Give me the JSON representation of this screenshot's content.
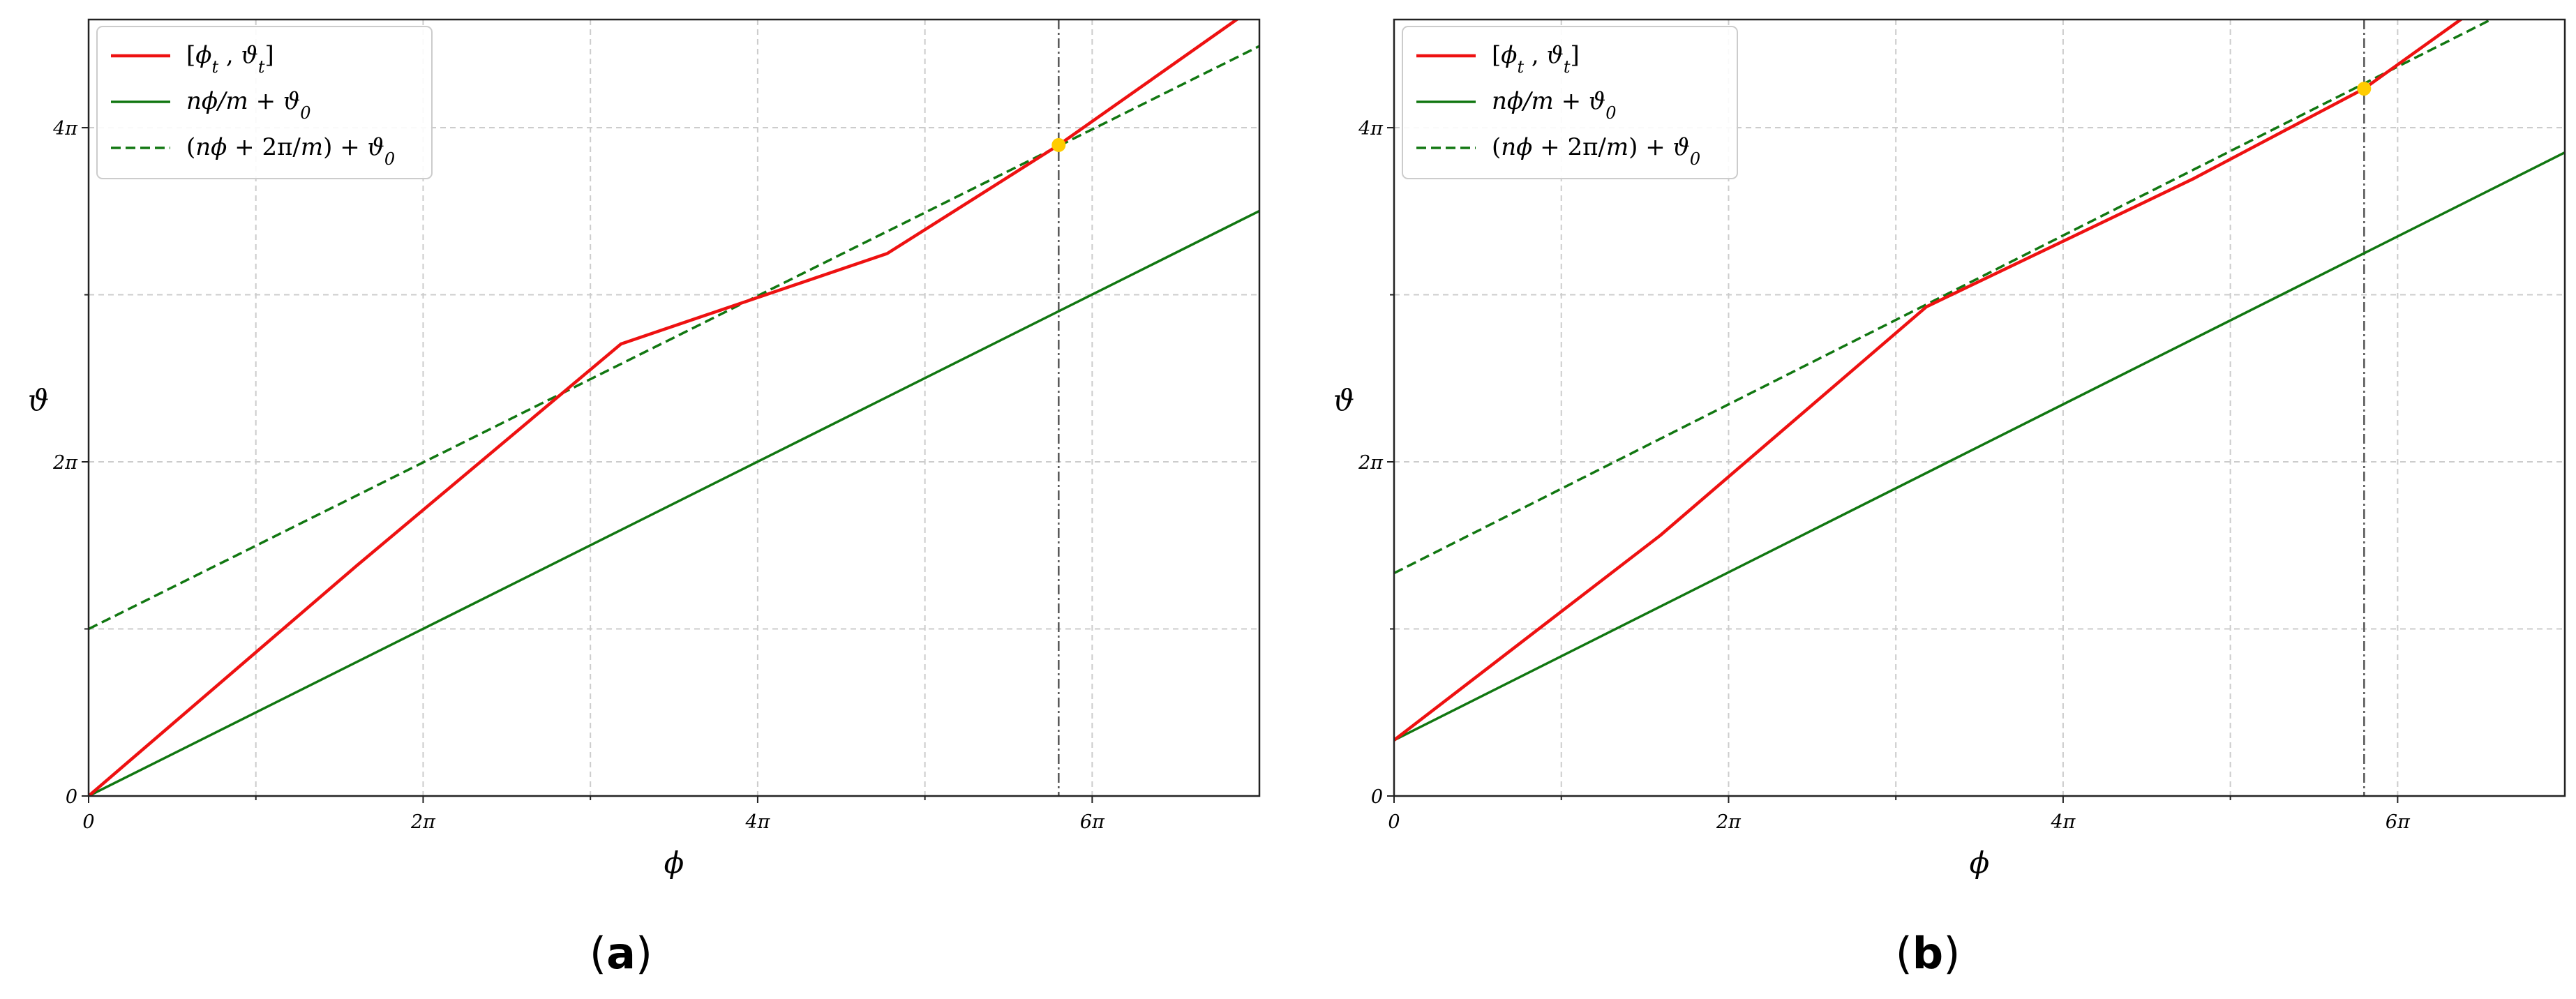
{
  "chart_data": [
    {
      "type": "line",
      "panel_label_parts": [
        "(",
        "a",
        ")"
      ],
      "xlabel": "ϕ",
      "ylabel": "ϑ",
      "xlim": [
        0,
        21.99
      ],
      "ylim": [
        0,
        14.6
      ],
      "xticks": [
        0,
        6.2832,
        12.5664,
        18.8496
      ],
      "xtick_labels": [
        "0",
        "2π",
        "4π",
        "6π"
      ],
      "yticks": [
        0,
        6.2832,
        12.5664
      ],
      "ytick_labels": [
        "0",
        "2π",
        "4π"
      ],
      "grid": true,
      "legend_position": "top-left",
      "vline_x": 18.22,
      "intersection": [
        18.22,
        12.24
      ],
      "series": [
        {
          "name": "[ϕt , ϑt]",
          "color": "#ee1111",
          "style": "solid",
          "x": [
            0,
            5,
            10,
            15,
            18.22,
            21.99
          ],
          "y": [
            0,
            4.3,
            8.5,
            10.2,
            12.24,
            14.9
          ]
        },
        {
          "name": "nϕ/m + ϑ0",
          "color": "#117711",
          "style": "solid",
          "x": [
            0,
            21.99
          ],
          "y": [
            0,
            11.0
          ]
        },
        {
          "name": "(nϕ + 2π/m) + ϑ0",
          "color": "#117711",
          "style": "dashed",
          "x": [
            0,
            21.99
          ],
          "y": [
            3.14,
            14.1
          ]
        }
      ]
    },
    {
      "type": "line",
      "panel_label_parts": [
        "(",
        "b",
        ")"
      ],
      "xlabel": "ϕ",
      "ylabel": "ϑ",
      "xlim": [
        0,
        21.99
      ],
      "ylim": [
        0,
        14.6
      ],
      "xticks": [
        0,
        6.2832,
        12.5664,
        18.8496
      ],
      "xtick_labels": [
        "0",
        "2π",
        "4π",
        "6π"
      ],
      "yticks": [
        0,
        6.2832,
        12.5664
      ],
      "ytick_labels": [
        "0",
        "2π",
        "4π"
      ],
      "grid": true,
      "legend_position": "top-left",
      "vline_x": 18.22,
      "intersection": [
        18.22,
        13.3
      ],
      "series": [
        {
          "name": "[ϕt , ϑt]",
          "color": "#ee1111",
          "style": "solid",
          "x": [
            0,
            5,
            10,
            15,
            18.22,
            21.99
          ],
          "y": [
            1.05,
            4.9,
            9.2,
            11.6,
            13.3,
            16.0
          ]
        },
        {
          "name": "nϕ/m + ϑ0",
          "color": "#117711",
          "style": "solid",
          "x": [
            0,
            21.99
          ],
          "y": [
            1.05,
            12.1
          ]
        },
        {
          "name": "(nϕ + 2π/m) + ϑ0",
          "color": "#117711",
          "style": "dashed",
          "x": [
            0,
            21.99
          ],
          "y": [
            4.19,
            15.3
          ]
        }
      ]
    }
  ]
}
